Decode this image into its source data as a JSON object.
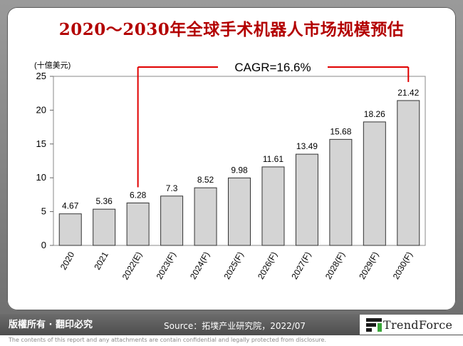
{
  "title": "2020～2030年全球手术机器人市场规模预估",
  "footer": {
    "copyright": "版權所有 · 翻印必究",
    "source": "Source：拓墣产业研究院，2022/07",
    "logo": "TrendForce",
    "disclaimer": "The contents of this report and any attachments are contain confidential and legally protected from disclosure."
  },
  "chart_data": {
    "type": "bar",
    "ylabel": "(十億美元)",
    "xlabel": "",
    "ylim": [
      0,
      25
    ],
    "yticks": [
      0,
      5,
      10,
      15,
      20,
      25
    ],
    "categories": [
      "2020",
      "2021",
      "2022(E)",
      "2023(F)",
      "2024(F)",
      "2025(F)",
      "2026(F)",
      "2027(F)",
      "2028(F)",
      "2029(F)",
      "2030(F)"
    ],
    "values": [
      4.67,
      5.36,
      6.28,
      7.3,
      8.52,
      9.98,
      11.61,
      13.49,
      15.68,
      18.26,
      21.42
    ],
    "value_labels": [
      "4.67",
      "5.36",
      "6.28",
      "7.3",
      "8.52",
      "9.98",
      "11.61",
      "13.49",
      "15.68",
      "18.26",
      "21.42"
    ],
    "annotation": "CAGR=16.6%",
    "bar_color": "#d4d4d4",
    "bracket_color": "#e00000"
  }
}
